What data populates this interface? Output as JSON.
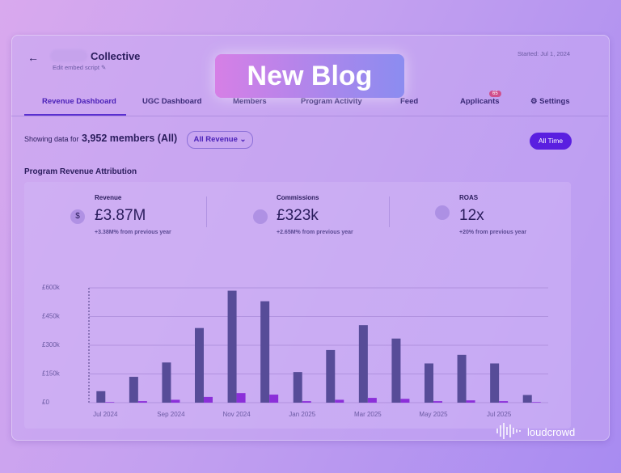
{
  "header": {
    "name": "Collective",
    "edit_link": "Edit embed script",
    "started": "Started: Jul 1, 2024"
  },
  "tabs": [
    "Revenue Dashboard",
    "UGC Dashboard",
    "Members",
    "Program Activity",
    "Feed",
    "Applicants",
    "Settings"
  ],
  "applicants_badge": "65",
  "filters": {
    "prefix": "Showing data for",
    "members": "3,952 members (All)",
    "revenue_filter": "All Revenue",
    "time_filter": "All Time"
  },
  "section_title": "Program Revenue Attribution",
  "kpis": [
    {
      "label": "Revenue",
      "value": "£3.87M",
      "change": "+3.38M% from previous year"
    },
    {
      "label": "Commissions",
      "value": "£323k",
      "change": "+2.65M% from previous year"
    },
    {
      "label": "ROAS",
      "value": "12x",
      "change": "+20% from previous year"
    }
  ],
  "banner": "New Blog",
  "brand": "loudcrowd",
  "chart_data": {
    "type": "bar",
    "categories": [
      "Jul 2024",
      null,
      "Sep 2024",
      null,
      "Nov 2024",
      null,
      "Jan 2025",
      null,
      "Mar 2025",
      null,
      "May 2025",
      null,
      "Jul 2025",
      null
    ],
    "series": [
      {
        "color": "#574c98",
        "values": [
          60000,
          135000,
          210000,
          390000,
          585000,
          530000,
          160000,
          275000,
          405000,
          335000,
          205000,
          250000,
          205000,
          40000
        ]
      },
      {
        "color": "#8b2fd9",
        "values": [
          3000,
          8000,
          15000,
          30000,
          50000,
          42000,
          8000,
          15000,
          25000,
          20000,
          8000,
          12000,
          8000,
          3000
        ]
      }
    ],
    "ylim": [
      0,
      600000
    ],
    "yticks": [
      {
        "value": 0,
        "label": "£0"
      },
      {
        "value": 150000,
        "label": "£150k"
      },
      {
        "value": 300000,
        "label": "£300k"
      },
      {
        "value": 450000,
        "label": "£450k"
      },
      {
        "value": 600000,
        "label": "£600k"
      }
    ],
    "grid": true
  }
}
